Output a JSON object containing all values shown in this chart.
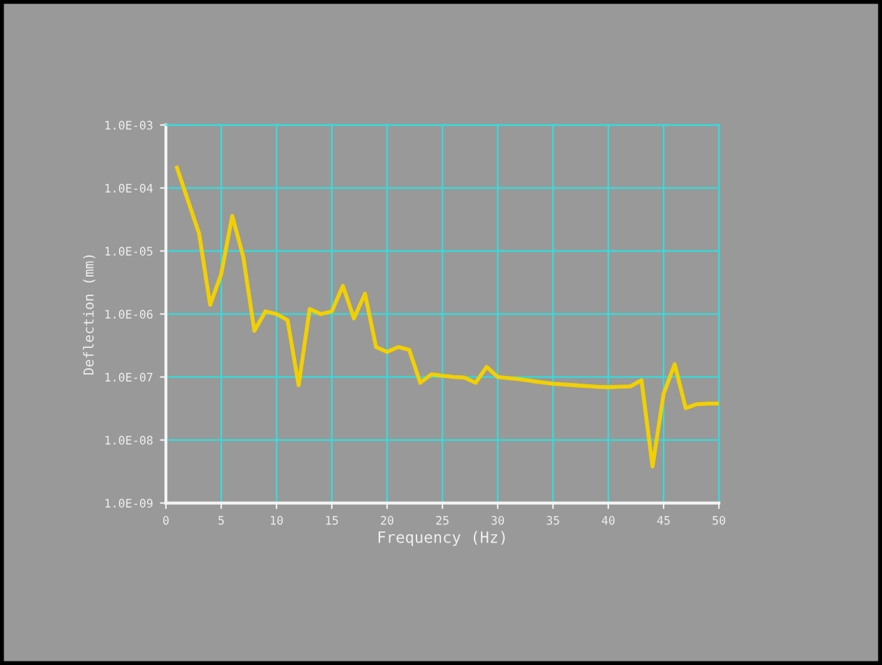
{
  "chart_data": {
    "type": "line",
    "xlabel": "Frequency (Hz)",
    "ylabel": "Deflection (mm)",
    "log": "y",
    "x": [
      1,
      3,
      4,
      5,
      6,
      7,
      8,
      9,
      10,
      11,
      12,
      13,
      14,
      15,
      16,
      17,
      18,
      19,
      20,
      21,
      22,
      23,
      24,
      25,
      26,
      27,
      28,
      29,
      30,
      31,
      32,
      33,
      34,
      35,
      36,
      37,
      38,
      39,
      40,
      41,
      42,
      43,
      44,
      45,
      46,
      47,
      48,
      49,
      50
    ],
    "series": [
      {
        "color": "#f2d000",
        "values": [
          0.00021,
          1.9e-05,
          1.4e-06,
          4.3e-06,
          3.6e-05,
          8e-06,
          5.4e-07,
          1.1e-06,
          1e-06,
          8e-07,
          7.4e-08,
          1.2e-06,
          1e-06,
          1.1e-06,
          2.8e-06,
          8.5e-07,
          2.1e-06,
          3e-07,
          2.5e-07,
          3e-07,
          2.7e-07,
          8.1e-08,
          1.1e-07,
          1.05e-07,
          1e-07,
          9.8e-08,
          8.1e-08,
          1.45e-07,
          1e-07,
          9.6e-08,
          9.2e-08,
          8.7e-08,
          8.2e-08,
          7.8e-08,
          7.6e-08,
          7.4e-08,
          7.2e-08,
          7e-08,
          6.9e-08,
          7e-08,
          7.1e-08,
          8.9e-08,
          3.8e-09,
          5.4e-08,
          1.6e-07,
          3.2e-08,
          3.7e-08,
          3.8e-08,
          3.8e-08
        ]
      }
    ],
    "xlim": [
      0,
      50
    ],
    "xticks": [
      0,
      5,
      10,
      15,
      20,
      25,
      30,
      35,
      40,
      45,
      50
    ],
    "ylim": [
      1e-09,
      0.001
    ],
    "yticks": [
      {
        "value": 1e-09,
        "label": "1.0E-09"
      },
      {
        "value": 1e-08,
        "label": "1.0E-08"
      },
      {
        "value": 1e-07,
        "label": "1.0E-07"
      },
      {
        "value": 1e-06,
        "label": "1.0E-06"
      },
      {
        "value": 1e-05,
        "label": "1.0E-05"
      },
      {
        "value": 0.0001,
        "label": "1.0E-04"
      },
      {
        "value": 0.001,
        "label": "1.0E-03"
      }
    ],
    "grid": true,
    "marker": "none",
    "line_style": "solid"
  }
}
